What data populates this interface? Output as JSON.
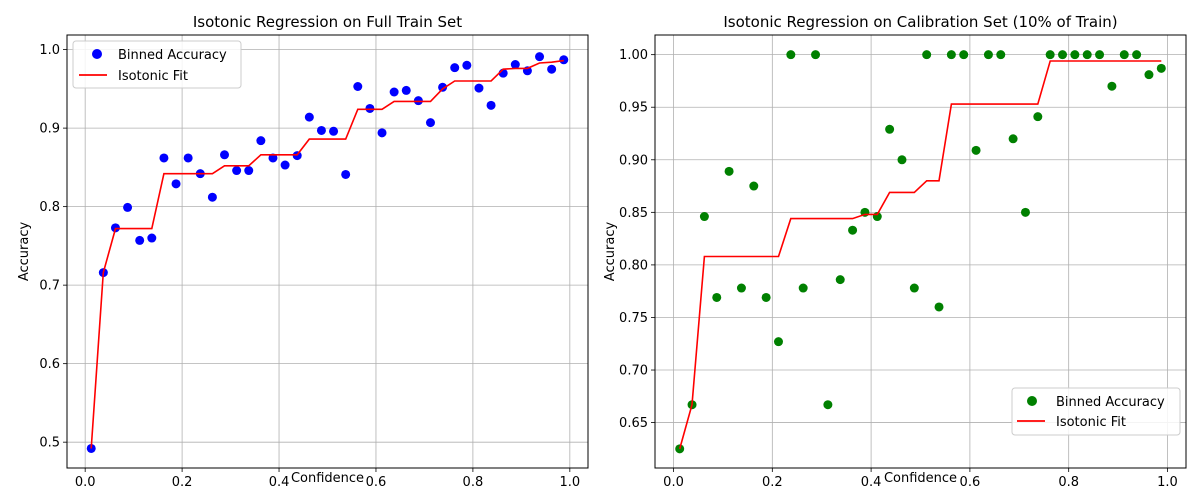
{
  "chart_data": [
    {
      "type": "scatter",
      "title": "Isotonic Regression on Full Train Set",
      "xlabel": "Confidence",
      "ylabel": "Accuracy",
      "xlim": [
        -0.0375,
        1.0375
      ],
      "ylim": [
        0.4671,
        1.0186
      ],
      "xticks": [
        0.0,
        0.2,
        0.4,
        0.6,
        0.8,
        1.0
      ],
      "xtick_labels": [
        "0.0",
        "0.2",
        "0.4",
        "0.6",
        "0.8",
        "1.0"
      ],
      "yticks": [
        0.5,
        0.6,
        0.7,
        0.8,
        0.9,
        1.0
      ],
      "ytick_labels": [
        "0.5",
        "0.6",
        "0.7",
        "0.8",
        "0.9",
        "1.0"
      ],
      "grid": true,
      "legend_position": "upper-left",
      "series": [
        {
          "name": "Binned Accuracy",
          "kind": "scatter",
          "color": "#0000ff",
          "x": [
            0.0125,
            0.0375,
            0.0625,
            0.0875,
            0.1125,
            0.1375,
            0.1625,
            0.1875,
            0.2125,
            0.2375,
            0.2625,
            0.2875,
            0.3125,
            0.3375,
            0.3625,
            0.3875,
            0.4125,
            0.4375,
            0.4625,
            0.4875,
            0.5125,
            0.5375,
            0.5625,
            0.5875,
            0.6125,
            0.6375,
            0.6625,
            0.6875,
            0.7125,
            0.7375,
            0.7625,
            0.7875,
            0.8125,
            0.8375,
            0.8625,
            0.8875,
            0.9125,
            0.9375,
            0.9625,
            0.9875
          ],
          "y": [
            0.492,
            0.716,
            0.773,
            0.799,
            0.757,
            0.76,
            0.862,
            0.829,
            0.862,
            0.842,
            0.812,
            0.866,
            0.846,
            0.846,
            0.884,
            0.862,
            0.853,
            0.865,
            0.914,
            0.897,
            0.896,
            0.841,
            0.953,
            0.925,
            0.894,
            0.946,
            0.948,
            0.935,
            0.907,
            0.952,
            0.977,
            0.98,
            0.951,
            0.929,
            0.97,
            0.981,
            0.973,
            0.991,
            0.975,
            0.987
          ]
        },
        {
          "name": "Isotonic Fit",
          "kind": "line",
          "color": "#ff0000",
          "x": [
            0.0125,
            0.0375,
            0.0625,
            0.0875,
            0.1375,
            0.1625,
            0.2375,
            0.2625,
            0.2875,
            0.3375,
            0.3625,
            0.4375,
            0.4625,
            0.5375,
            0.5625,
            0.6125,
            0.6375,
            0.7125,
            0.7375,
            0.7625,
            0.8375,
            0.8625,
            0.8875,
            0.9125,
            0.9375,
            0.9625,
            0.9875
          ],
          "y": [
            0.492,
            0.716,
            0.772,
            0.772,
            0.772,
            0.842,
            0.842,
            0.842,
            0.852,
            0.852,
            0.866,
            0.866,
            0.886,
            0.886,
            0.924,
            0.924,
            0.934,
            0.934,
            0.95,
            0.96,
            0.96,
            0.975,
            0.976,
            0.976,
            0.983,
            0.984,
            0.986
          ]
        }
      ]
    },
    {
      "type": "scatter",
      "title": "Isotonic Regression on Calibration Set (10% of Train)",
      "xlabel": "Confidence",
      "ylabel": "Accuracy",
      "xlim": [
        -0.0375,
        1.0375
      ],
      "ylim": [
        0.6068,
        1.0187
      ],
      "xticks": [
        0.0,
        0.2,
        0.4,
        0.6,
        0.8,
        1.0
      ],
      "xtick_labels": [
        "0.0",
        "0.2",
        "0.4",
        "0.6",
        "0.8",
        "1.0"
      ],
      "yticks": [
        0.65,
        0.7,
        0.75,
        0.8,
        0.85,
        0.9,
        0.95,
        1.0
      ],
      "ytick_labels": [
        "0.65",
        "0.70",
        "0.75",
        "0.80",
        "0.85",
        "0.90",
        "0.95",
        "1.00"
      ],
      "grid": true,
      "legend_position": "lower-right",
      "series": [
        {
          "name": "Binned Accuracy",
          "kind": "scatter",
          "color": "#008000",
          "x": [
            0.0125,
            0.0375,
            0.0625,
            0.0875,
            0.1125,
            0.1375,
            0.1625,
            0.1875,
            0.2125,
            0.2375,
            0.2625,
            0.2875,
            0.3125,
            0.3375,
            0.3625,
            0.3875,
            0.4125,
            0.4375,
            0.4625,
            0.4875,
            0.5125,
            0.5375,
            0.5625,
            0.5875,
            0.6125,
            0.6375,
            0.6625,
            0.6875,
            0.7125,
            0.7375,
            0.7625,
            0.7875,
            0.8125,
            0.8375,
            0.8625,
            0.8875,
            0.9125,
            0.9375,
            0.9625,
            0.9875
          ],
          "y": [
            0.625,
            0.667,
            0.846,
            0.769,
            0.889,
            0.778,
            0.875,
            0.769,
            0.727,
            1.0,
            0.778,
            1.0,
            0.667,
            0.786,
            0.833,
            0.85,
            0.846,
            0.929,
            0.9,
            0.778,
            1.0,
            0.76,
            1.0,
            1.0,
            0.909,
            1.0,
            1.0,
            0.92,
            0.85,
            0.941,
            1.0,
            1.0,
            1.0,
            1.0,
            1.0,
            0.97,
            1.0,
            1.0,
            0.981,
            0.987
          ]
        },
        {
          "name": "Isotonic Fit",
          "kind": "line",
          "color": "#ff0000",
          "x": [
            0.0125,
            0.0375,
            0.0625,
            0.2125,
            0.2375,
            0.3625,
            0.3875,
            0.4125,
            0.4375,
            0.4875,
            0.5125,
            0.5375,
            0.5625,
            0.7375,
            0.7625,
            0.9875
          ],
          "y": [
            0.625,
            0.667,
            0.808,
            0.808,
            0.844,
            0.844,
            0.848,
            0.848,
            0.869,
            0.869,
            0.88,
            0.88,
            0.953,
            0.953,
            0.994,
            0.994
          ]
        }
      ]
    }
  ]
}
